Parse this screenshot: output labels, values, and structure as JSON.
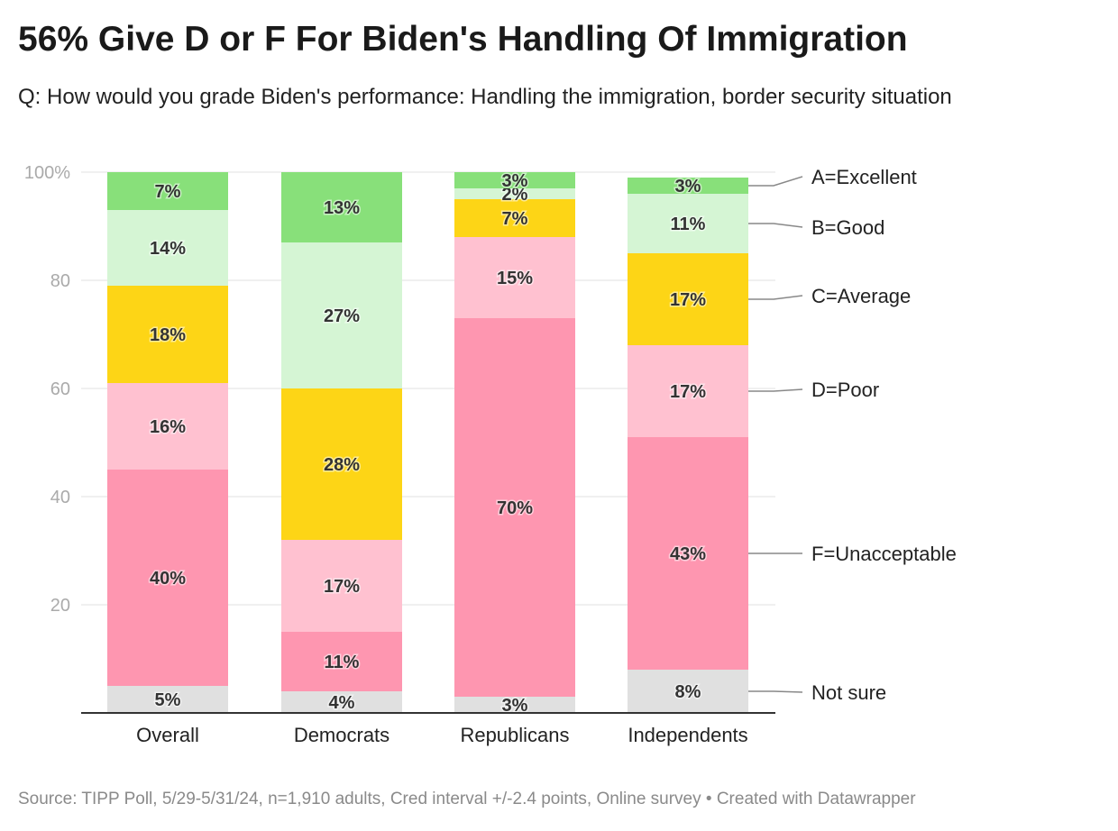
{
  "header": {
    "title": "56% Give D or F For Biden's Handling Of Immigration",
    "subtitle": "Q: How would you grade Biden's performance: Handling the immigration, border security situation"
  },
  "footer": {
    "source": "Source: TIPP Poll, 5/29-5/31/24, n=1,910 adults, Cred interval +/-2.4 points, Online survey • Created with Datawrapper"
  },
  "chart_data": {
    "type": "bar",
    "stacked": true,
    "orientation": "vertical",
    "title": "56% Give D or F For Biden's Handling Of Immigration",
    "ylim": [
      0,
      100
    ],
    "yticks": [
      20,
      40,
      60,
      80,
      100
    ],
    "ytick_labels": [
      "20",
      "40",
      "60",
      "80",
      "100%"
    ],
    "grid": true,
    "categories": [
      "Overall",
      "Democrats",
      "Republicans",
      "Independents"
    ],
    "series": [
      {
        "name": "Not sure",
        "color": "#e0e0e0",
        "values": [
          5,
          4,
          3,
          8
        ],
        "labels": [
          "5%",
          "4%",
          "3%",
          "8%"
        ]
      },
      {
        "name": "F=Unacceptable",
        "color": "#fe96b0",
        "values": [
          40,
          11,
          70,
          43
        ],
        "labels": [
          "40%",
          "11%",
          "70%",
          "43%"
        ]
      },
      {
        "name": "D=Poor",
        "color": "#ffc1d0",
        "values": [
          16,
          17,
          15,
          17
        ],
        "labels": [
          "16%",
          "17%",
          "15%",
          "17%"
        ]
      },
      {
        "name": "C=Average",
        "color": "#fdd516",
        "values": [
          18,
          28,
          7,
          17
        ],
        "labels": [
          "18%",
          "28%",
          "7%",
          "17%"
        ]
      },
      {
        "name": "B=Good",
        "color": "#d5f5d4",
        "values": [
          14,
          27,
          2,
          11
        ],
        "labels": [
          "14%",
          "27%",
          "2%",
          "11%"
        ]
      },
      {
        "name": "A=Excellent",
        "color": "#88e07a",
        "values": [
          7,
          13,
          3,
          3
        ],
        "labels": [
          "7%",
          "13%",
          "3%",
          "3%"
        ]
      }
    ],
    "legend_position": "right, direct labels"
  }
}
